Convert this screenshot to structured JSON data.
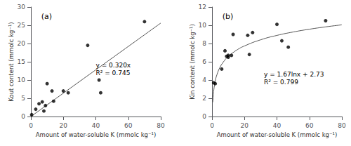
{
  "chart_data": [
    {
      "type": "scatter",
      "panel_label": "(a)",
      "x_label": "Amount of water-soluble K (mmolc kg⁻¹)",
      "y_label": "Kout content (mmolc kg⁻¹)",
      "annotation": [
        "y = 0.320x",
        "R² = 0.745"
      ],
      "series": [
        {
          "type": "scatter",
          "color": "#000000",
          "x": [
            0.5,
            3,
            5,
            7,
            8,
            9,
            10,
            13,
            14,
            20,
            23,
            35,
            42,
            43,
            70
          ],
          "values": [
            0.5,
            2,
            3.5,
            4,
            1.5,
            3,
            9,
            7,
            4.2,
            7,
            6.5,
            19.5,
            10,
            6.5,
            26
          ]
        },
        {
          "type": "line",
          "color": "#555555",
          "x": [
            0,
            80
          ],
          "values": [
            0,
            25.6
          ]
        }
      ],
      "xlim": [
        0,
        80
      ],
      "ylim": [
        0,
        30
      ],
      "xticks": [
        0,
        20,
        40,
        60,
        80
      ],
      "yticks": [
        0,
        5,
        10,
        15,
        20,
        25,
        30
      ],
      "grid": false
    },
    {
      "type": "scatter",
      "panel_label": "(b)",
      "x_label": "Amount of water-soluble K (mmolc kg⁻¹)",
      "y_label": "Kin content (mmolc kg⁻¹)",
      "annotation": [
        "y = 1.67lnx + 2.73",
        "R² = 0.799"
      ],
      "series": [
        {
          "type": "scatter",
          "color": "#000000",
          "x": [
            1,
            2,
            6,
            8,
            9,
            10,
            10,
            12,
            13,
            22,
            23,
            25,
            40,
            43,
            47,
            70
          ],
          "values": [
            3.7,
            3.6,
            5.2,
            7.2,
            6.6,
            6.5,
            6.7,
            6.7,
            9.0,
            8.9,
            6.8,
            9.2,
            10.1,
            8.3,
            7.6,
            10.5
          ]
        },
        {
          "type": "line",
          "color": "#555555",
          "x": [
            0.5,
            0.7,
            1,
            1.5,
            2,
            3,
            5,
            7.5,
            10,
            15,
            20,
            30,
            40,
            50,
            60,
            70,
            80
          ],
          "values": [
            1.572,
            2.134,
            2.73,
            3.407,
            3.888,
            4.565,
            5.418,
            6.095,
            6.575,
            7.252,
            7.733,
            8.41,
            8.89,
            9.263,
            9.568,
            9.825,
            10.048
          ]
        }
      ],
      "xlim": [
        0,
        80
      ],
      "ylim": [
        0,
        12
      ],
      "xticks": [
        0,
        20,
        40,
        60,
        80
      ],
      "yticks": [
        0,
        2,
        4,
        6,
        8,
        10,
        12
      ],
      "grid": false
    }
  ]
}
